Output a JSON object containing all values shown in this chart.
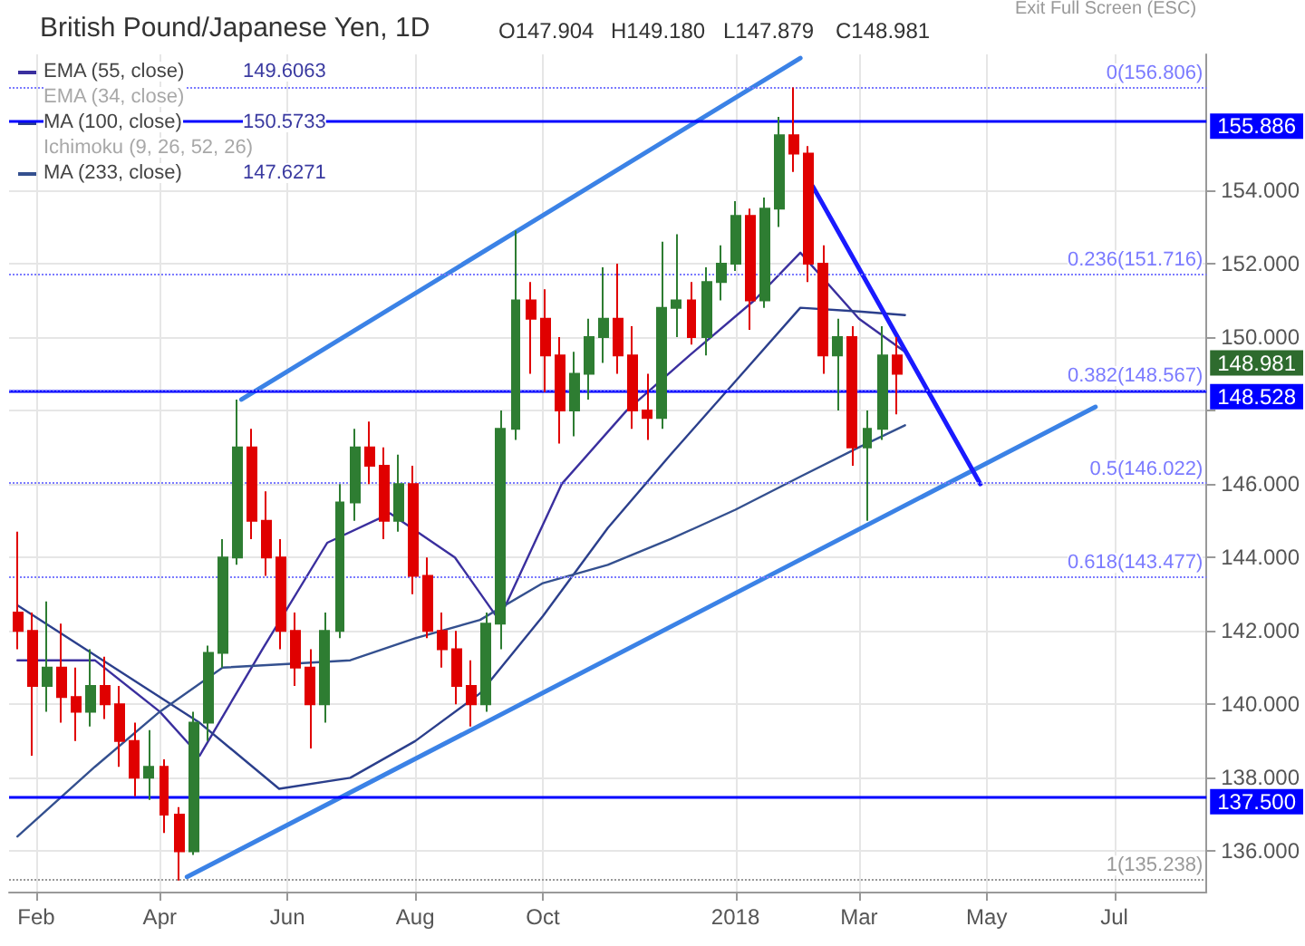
{
  "chart_data": {
    "type": "candlestick",
    "title": "British Pound/Japanese Yen, 1D",
    "annotations": [
      "O147.904",
      "H149.180",
      "L147.879",
      "C148.981",
      "149.6063",
      "150.5733",
      "147.6271",
      "EMA (34, close)",
      "Ichimoku (9, 26, 52, 26)",
      "Exit Full Screen (ESC)",
      "148.981"
    ],
    "x": [
      "2017-01-23",
      "2017-01-30",
      "2017-02-06",
      "2017-02-13",
      "2017-02-20",
      "2017-02-27",
      "2017-03-06",
      "2017-03-13",
      "2017-03-20",
      "2017-03-27",
      "2017-04-03",
      "2017-04-10",
      "2017-04-17",
      "2017-04-24",
      "2017-05-01",
      "2017-05-08",
      "2017-05-15",
      "2017-05-22",
      "2017-05-29",
      "2017-06-05",
      "2017-06-12",
      "2017-06-19",
      "2017-06-26",
      "2017-07-03",
      "2017-07-10",
      "2017-07-17",
      "2017-07-24",
      "2017-07-31",
      "2017-08-07",
      "2017-08-14",
      "2017-08-21",
      "2017-08-28",
      "2017-09-04",
      "2017-09-11",
      "2017-09-18",
      "2017-09-25",
      "2017-10-02",
      "2017-10-09",
      "2017-10-16",
      "2017-10-23",
      "2017-10-30",
      "2017-11-06",
      "2017-11-13",
      "2017-11-20",
      "2017-11-27",
      "2017-12-04",
      "2017-12-11",
      "2017-12-18",
      "2017-12-25",
      "2018-01-01",
      "2018-01-08",
      "2018-01-15",
      "2018-01-22",
      "2018-01-29",
      "2018-02-05",
      "2018-02-12",
      "2018-02-19",
      "2018-02-26",
      "2018-03-05",
      "2018-03-12",
      "2018-03-19"
    ],
    "ohlc": [
      [
        142.5,
        144.7,
        141.5,
        142.0
      ],
      [
        142.0,
        142.5,
        138.6,
        140.5
      ],
      [
        140.5,
        142.8,
        139.8,
        141.0
      ],
      [
        141.0,
        142.2,
        139.5,
        140.2
      ],
      [
        140.2,
        141.0,
        139.0,
        139.8
      ],
      [
        139.8,
        141.5,
        139.4,
        140.5
      ],
      [
        140.5,
        141.3,
        139.6,
        140.0
      ],
      [
        140.0,
        140.5,
        138.3,
        139.0
      ],
      [
        139.0,
        139.5,
        137.5,
        138.0
      ],
      [
        138.0,
        139.3,
        137.4,
        138.3
      ],
      [
        138.3,
        138.5,
        136.5,
        137.0
      ],
      [
        137.0,
        137.2,
        135.2,
        136.0
      ],
      [
        136.0,
        139.8,
        135.9,
        139.5
      ],
      [
        139.5,
        141.6,
        139.0,
        141.4
      ],
      [
        141.4,
        144.5,
        141.0,
        144.0
      ],
      [
        144.0,
        148.3,
        143.8,
        147.0
      ],
      [
        147.0,
        147.5,
        144.5,
        145.0
      ],
      [
        145.0,
        145.8,
        143.5,
        144.0
      ],
      [
        144.0,
        144.5,
        141.5,
        142.0
      ],
      [
        142.0,
        142.5,
        140.5,
        141.0
      ],
      [
        141.0,
        141.5,
        138.8,
        140.0
      ],
      [
        140.0,
        142.5,
        139.5,
        142.0
      ],
      [
        142.0,
        146.0,
        141.8,
        145.5
      ],
      [
        145.5,
        147.5,
        145.0,
        147.0
      ],
      [
        147.0,
        147.7,
        146.0,
        146.5
      ],
      [
        146.5,
        147.0,
        144.5,
        145.0
      ],
      [
        145.0,
        146.8,
        144.7,
        146.0
      ],
      [
        146.0,
        146.5,
        143.0,
        143.5
      ],
      [
        143.5,
        144.0,
        141.8,
        142.0
      ],
      [
        142.0,
        142.5,
        141.0,
        141.5
      ],
      [
        141.5,
        142.0,
        140.0,
        140.5
      ],
      [
        140.5,
        141.2,
        139.4,
        140.0
      ],
      [
        140.0,
        142.5,
        139.8,
        142.2
      ],
      [
        142.2,
        148.0,
        141.5,
        147.5
      ],
      [
        147.5,
        152.9,
        147.2,
        151.0
      ],
      [
        151.0,
        151.5,
        149.0,
        150.5
      ],
      [
        150.5,
        151.3,
        148.5,
        149.5
      ],
      [
        149.5,
        150.0,
        147.1,
        148.0
      ],
      [
        148.0,
        149.6,
        147.3,
        149.0
      ],
      [
        149.0,
        150.5,
        148.3,
        150.0
      ],
      [
        150.0,
        151.9,
        149.3,
        150.5
      ],
      [
        150.5,
        152.0,
        149.0,
        149.5
      ],
      [
        149.5,
        150.3,
        147.5,
        148.0
      ],
      [
        148.0,
        149.0,
        147.2,
        147.8
      ],
      [
        147.8,
        152.6,
        147.5,
        150.8
      ],
      [
        150.8,
        152.8,
        150.0,
        151.0
      ],
      [
        151.0,
        151.5,
        149.8,
        150.0
      ],
      [
        150.0,
        151.9,
        149.5,
        151.5
      ],
      [
        151.5,
        152.5,
        151.0,
        152.0
      ],
      [
        152.0,
        153.7,
        151.8,
        153.3
      ],
      [
        153.3,
        153.5,
        150.2,
        151.0
      ],
      [
        151.0,
        153.8,
        150.8,
        153.5
      ],
      [
        153.5,
        156.0,
        153.0,
        155.5
      ],
      [
        155.5,
        156.8,
        154.5,
        155.0
      ],
      [
        155.0,
        155.2,
        151.5,
        152.0
      ],
      [
        152.0,
        152.5,
        149.0,
        149.5
      ],
      [
        149.5,
        150.5,
        148.0,
        150.0
      ],
      [
        150.0,
        150.3,
        146.5,
        147.0
      ],
      [
        147.0,
        148.0,
        145.0,
        147.5
      ],
      [
        147.5,
        150.3,
        147.2,
        149.5
      ],
      [
        149.5,
        150.0,
        147.9,
        149.0
      ]
    ],
    "colors": [
      "#e00000",
      "#e00000",
      "#2e7d32",
      "#e00000",
      "#e00000",
      "#2e7d32",
      "#e00000",
      "#e00000",
      "#e00000",
      "#2e7d32",
      "#e00000",
      "#e00000",
      "#2e7d32",
      "#2e7d32",
      "#2e7d32",
      "#2e7d32",
      "#e00000",
      "#e00000",
      "#e00000",
      "#e00000",
      "#e00000",
      "#2e7d32",
      "#2e7d32",
      "#2e7d32",
      "#e00000",
      "#e00000",
      "#2e7d32",
      "#e00000",
      "#e00000",
      "#e00000",
      "#e00000",
      "#e00000",
      "#2e7d32",
      "#2e7d32",
      "#2e7d32",
      "#e00000",
      "#e00000",
      "#e00000",
      "#2e7d32",
      "#2e7d32",
      "#2e7d32",
      "#e00000",
      "#e00000",
      "#e00000",
      "#2e7d32",
      "#2e7d32",
      "#e00000",
      "#2e7d32",
      "#2e7d32",
      "#2e7d32",
      "#e00000",
      "#2e7d32",
      "#2e7d32",
      "#e00000",
      "#e00000",
      "#e00000",
      "#2e7d32",
      "#e00000",
      "#2e7d32",
      "#2e7d32",
      "#e00000"
    ],
    "series": [
      {
        "type": "line",
        "name": "EMA (55, close)",
        "color": "#3a2f9e",
        "x": [
          "2017-01-23",
          "2017-03-01",
          "2017-04-01",
          "2017-04-20",
          "2017-05-20",
          "2017-06-20",
          "2017-07-20",
          "2017-08-20",
          "2017-09-10",
          "2017-10-10",
          "2017-11-10",
          "2017-12-10",
          "2018-01-10",
          "2018-02-01",
          "2018-03-01",
          "2018-03-23"
        ],
        "values": [
          141.2,
          141.2,
          139.8,
          138.6,
          141.5,
          144.4,
          145.2,
          144.0,
          142.3,
          146.0,
          148.0,
          149.5,
          151.0,
          152.3,
          150.5,
          149.6
        ]
      },
      {
        "type": "line",
        "name": "MA (100, close)",
        "color": "#2b3f8c",
        "x": [
          "2017-01-23",
          "2017-04-20",
          "2017-05-28",
          "2017-07-01",
          "2017-08-01",
          "2017-09-01",
          "2017-10-01",
          "2017-11-01",
          "2017-12-01",
          "2018-01-01",
          "2018-02-01",
          "2018-03-01",
          "2018-03-23"
        ],
        "values": [
          142.7,
          139.5,
          137.7,
          138.0,
          139.0,
          140.3,
          142.4,
          144.8,
          146.8,
          148.8,
          150.8,
          150.7,
          150.6
        ]
      },
      {
        "type": "line",
        "name": "MA (233, close)",
        "color": "#34508f",
        "x": [
          "2017-01-23",
          "2017-03-01",
          "2017-04-01",
          "2017-05-01",
          "2017-06-01",
          "2017-07-01",
          "2017-08-01",
          "2017-09-01",
          "2017-10-01",
          "2017-11-01",
          "2017-12-01",
          "2018-01-01",
          "2018-02-01",
          "2018-03-01",
          "2018-03-23"
        ],
        "values": [
          136.4,
          138.3,
          139.8,
          141.0,
          141.1,
          141.2,
          141.8,
          142.3,
          143.3,
          143.8,
          144.5,
          145.3,
          146.2,
          147.0,
          147.6
        ]
      },
      {
        "type": "line",
        "color": "#3b82e6",
        "x": [
          "2017-05-10",
          "2018-02-01"
        ],
        "values": [
          148.3,
          157.6
        ]
      },
      {
        "type": "line",
        "color": "#3b82e6",
        "x": [
          "2017-04-14",
          "2018-06-22"
        ],
        "values": [
          135.3,
          148.1
        ]
      },
      {
        "type": "line",
        "color": "#1a1aff",
        "x": [
          "2018-02-07",
          "2018-04-28"
        ],
        "values": [
          154.1,
          146.0
        ]
      }
    ],
    "xlim": [
      "2017-01-19",
      "2018-08-14"
    ],
    "xticks": [
      {
        "value": "2017-02-01",
        "label": "Feb"
      },
      {
        "value": "2017-04-01",
        "label": "Apr"
      },
      {
        "value": "2017-06-01",
        "label": "Jun"
      },
      {
        "value": "2017-08-01",
        "label": "Aug"
      },
      {
        "value": "2017-10-01",
        "label": "Oct"
      },
      {
        "value": "2018-01-01",
        "label": "2018"
      },
      {
        "value": "2018-03-01",
        "label": "Mar"
      },
      {
        "value": "2018-05-01",
        "label": "May"
      },
      {
        "value": "2018-07-01",
        "label": "Jul"
      }
    ],
    "ylim": [
      134.9,
      157.7
    ],
    "yticks": [
      {
        "value": 136,
        "label": "136.000"
      },
      {
        "value": 138,
        "label": "138.000"
      },
      {
        "value": 140,
        "label": "140.000"
      },
      {
        "value": 142,
        "label": "142.000"
      },
      {
        "value": 144,
        "label": "144.000"
      },
      {
        "value": 146,
        "label": "146.000"
      },
      {
        "value": 148,
        "label": null
      },
      {
        "value": 150,
        "label": "150.000"
      },
      {
        "value": 152,
        "label": "152.000"
      },
      {
        "value": 154,
        "label": "154.000"
      }
    ],
    "ref_lines": [
      {
        "axis": "y",
        "value": 155.886,
        "label": "155.886",
        "color": "#0000ff",
        "line_style": "solid"
      },
      {
        "axis": "y",
        "value": 148.528,
        "label": "148.528",
        "color": "#0000ff",
        "line_style": "solid"
      },
      {
        "axis": "y",
        "value": 137.5,
        "label": "137.500",
        "color": "#0000ff",
        "line_style": "solid"
      },
      {
        "axis": "y",
        "value": 156.806,
        "label": "0(156.806)",
        "color": "#7b7bff",
        "line_style": "dotted"
      },
      {
        "axis": "y",
        "value": 151.716,
        "label": "0.236(151.716)",
        "color": "#7b7bff",
        "line_style": "dotted"
      },
      {
        "axis": "y",
        "value": 148.567,
        "label": "0.382(148.567)",
        "color": "#7b7bff",
        "line_style": "dotted"
      },
      {
        "axis": "y",
        "value": 146.022,
        "label": "0.5(146.022)",
        "color": "#7b7bff",
        "line_style": "dotted"
      },
      {
        "axis": "y",
        "value": 143.477,
        "label": "0.618(143.477)",
        "color": "#7b7bff",
        "line_style": "dotted"
      },
      {
        "axis": "y",
        "value": 135.238,
        "label": "1(135.238)",
        "color": "#999999",
        "line_style": "dotted"
      }
    ],
    "grid": true,
    "legend": "top left",
    "marker": "none"
  }
}
